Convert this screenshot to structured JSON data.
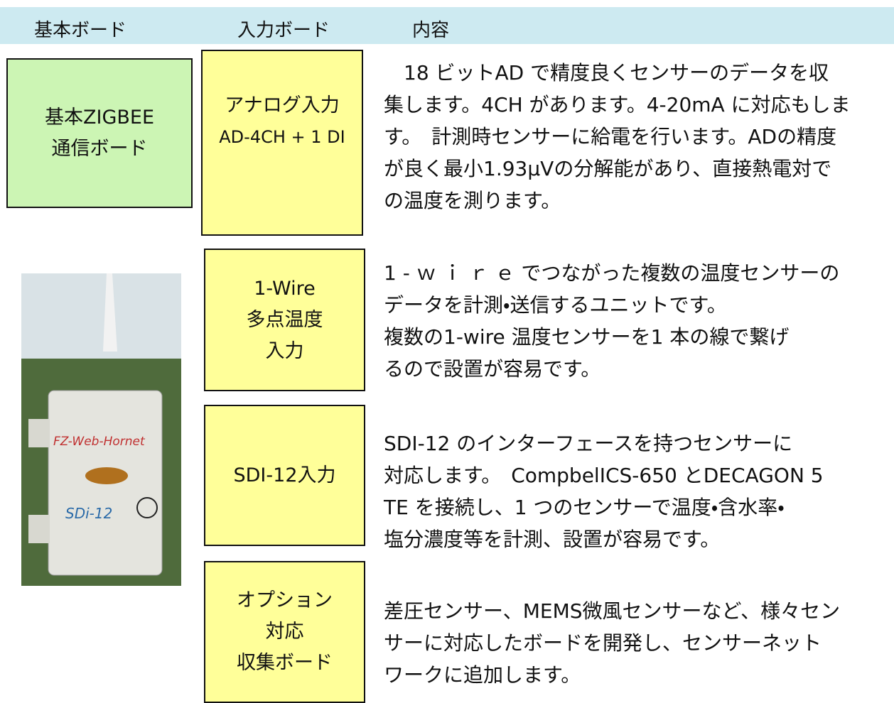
{
  "header": {
    "basic": "基本ボード",
    "input": "入力ボード",
    "content": "内容"
  },
  "basic_board": {
    "lines": [
      "基本ZIGBEE",
      "通信ボード"
    ]
  },
  "photo": {
    "brand": "FZ-Web-Hornet",
    "model": "SDi-12"
  },
  "rows": [
    {
      "board": [
        "アナログ入力",
        "AD-4CH + 1 DI"
      ],
      "description": [
        "　18 ビットAD で精度良くセンサーのデータを収",
        "集します。4CH があります。4-20mA に対応もしま",
        "す。　計測時センサーに給電を行います。ADの精度",
        "が良く最小1.93μVの分解能があり、直接熱電対で",
        "の温度を測ります。"
      ]
    },
    {
      "board": [
        "1-Wire",
        "多点温度",
        "入力"
      ],
      "description": [
        "1 - ｗ ｉ ｒ ｅ でつながった複数の温度センサーの",
        "データを計測・送信するユニットです。",
        "複数の1-wire 温度センサーを1 本の線で繋げ",
        "るので設置が容易です。"
      ]
    },
    {
      "board": [
        "SDI-12入力"
      ],
      "description": [
        "SDI-12 のインターフェースを持つセンサーに",
        "対応します。　CompbelICS-650 とDECAGON 5",
        "TE を接続し、1 つのセンサーで温度・含水率・",
        "塩分濃度等を計測、設置が容易です。"
      ]
    },
    {
      "board": [
        "オプション",
        "対応",
        "収集ボード"
      ],
      "description": [
        "差圧センサー、MEMS微風センサーなど、様々セン",
        "サーに対応したボードを開発し、センサーネット",
        "ワークに追加します。"
      ]
    }
  ]
}
